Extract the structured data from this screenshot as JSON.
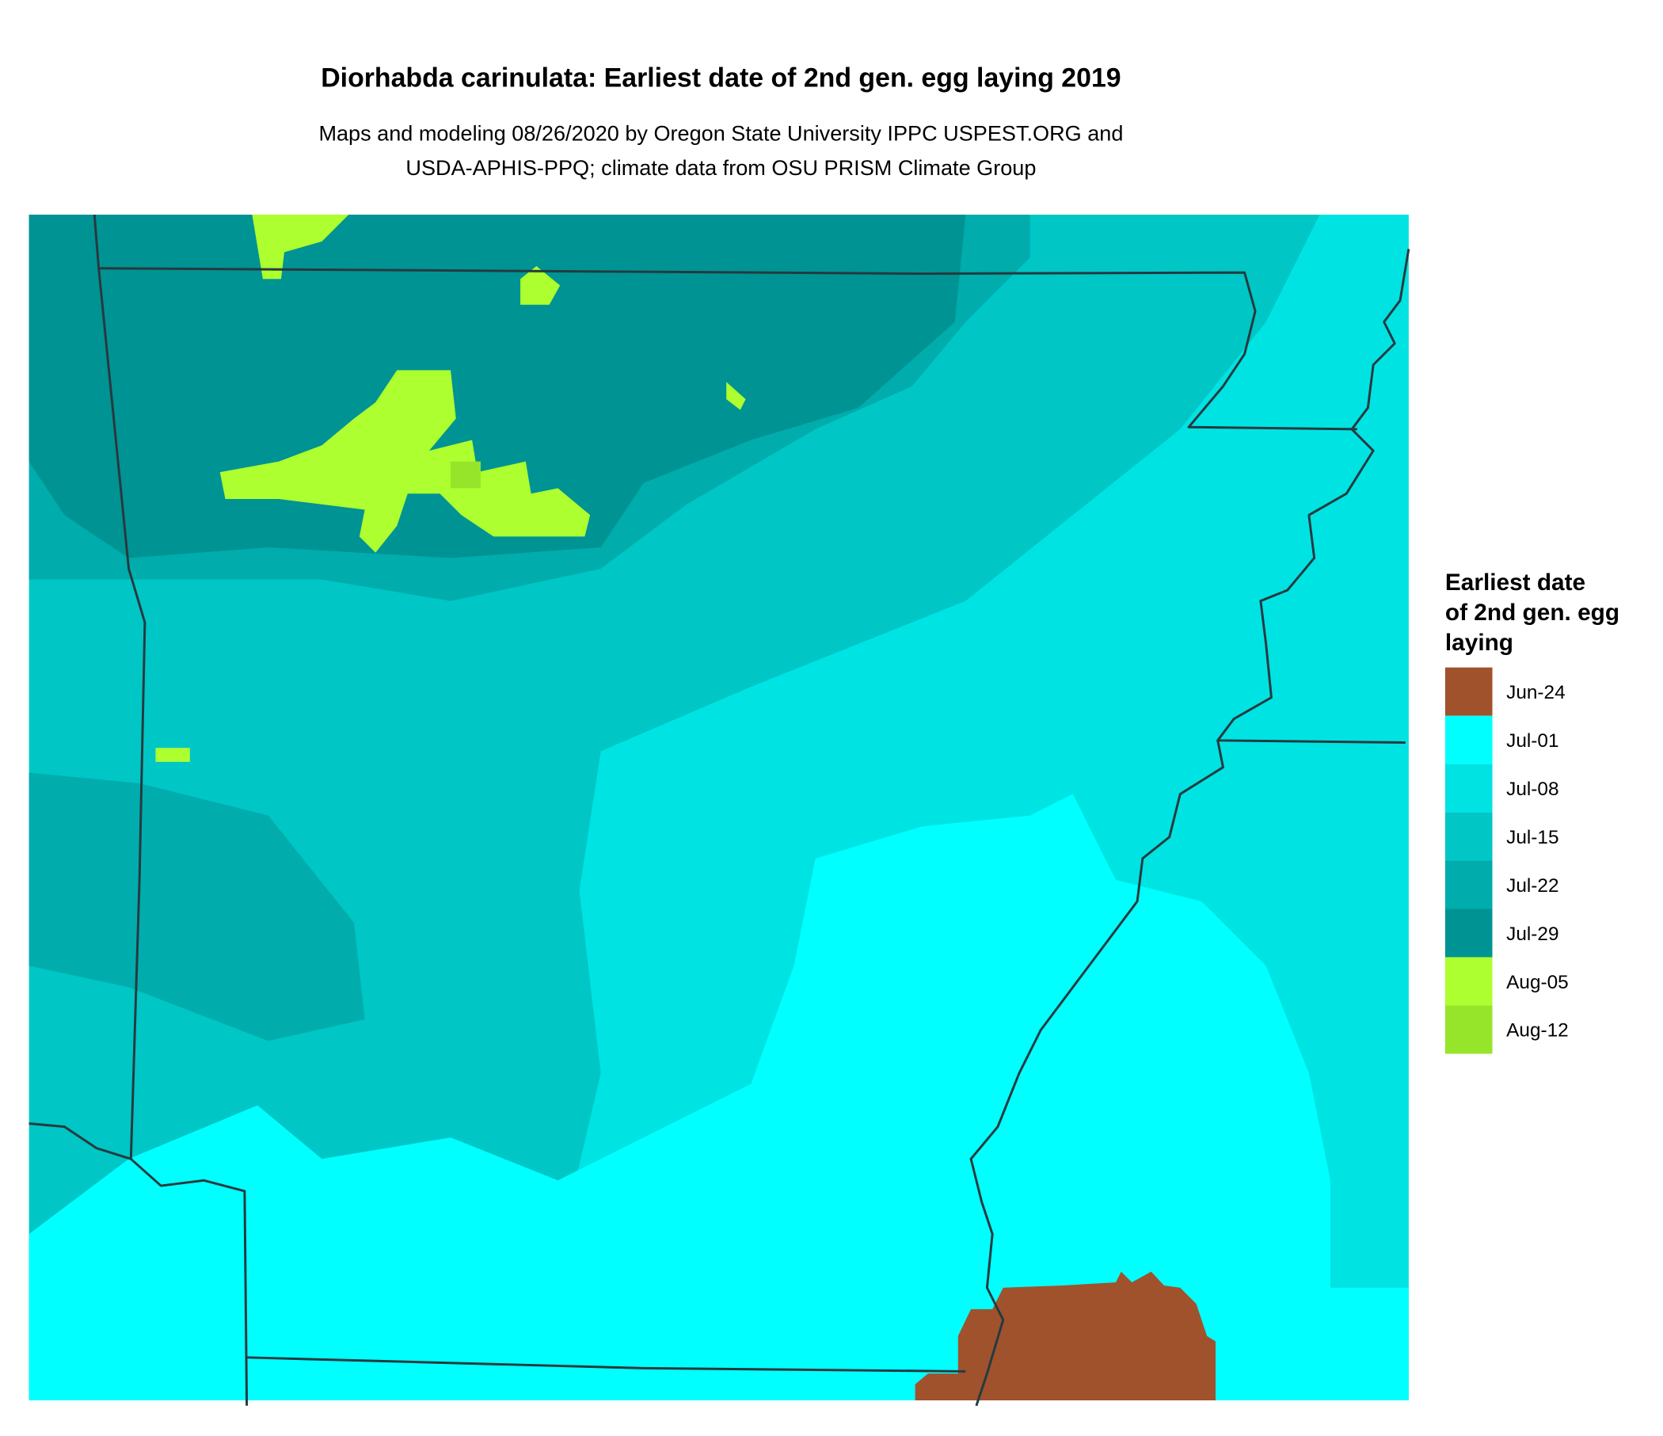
{
  "header": {
    "title": "Diorhabda carinulata: Earliest date of 2nd gen. egg laying 2019",
    "subtitle": [
      "Maps and modeling 08/26/2020 by Oregon State University IPPC USPEST.ORG and",
      "USDA-APHIS-PPQ; climate data from OSU PRISM Climate Group"
    ]
  },
  "legend": {
    "title": [
      "Earliest date",
      "of 2nd gen. egg",
      "laying"
    ],
    "items": [
      {
        "label": "Jun-24",
        "color": "#a0522d"
      },
      {
        "label": "Jul-01",
        "color": "#00ffff"
      },
      {
        "label": "Jul-08",
        "color": "#00e3e3"
      },
      {
        "label": "Jul-15",
        "color": "#00c6c6"
      },
      {
        "label": "Jul-22",
        "color": "#00acac"
      },
      {
        "label": "Jul-29",
        "color": "#009393"
      },
      {
        "label": "Aug-05",
        "color": "#adff2f"
      },
      {
        "label": "Aug-12",
        "color": "#97e52a"
      }
    ]
  }
}
